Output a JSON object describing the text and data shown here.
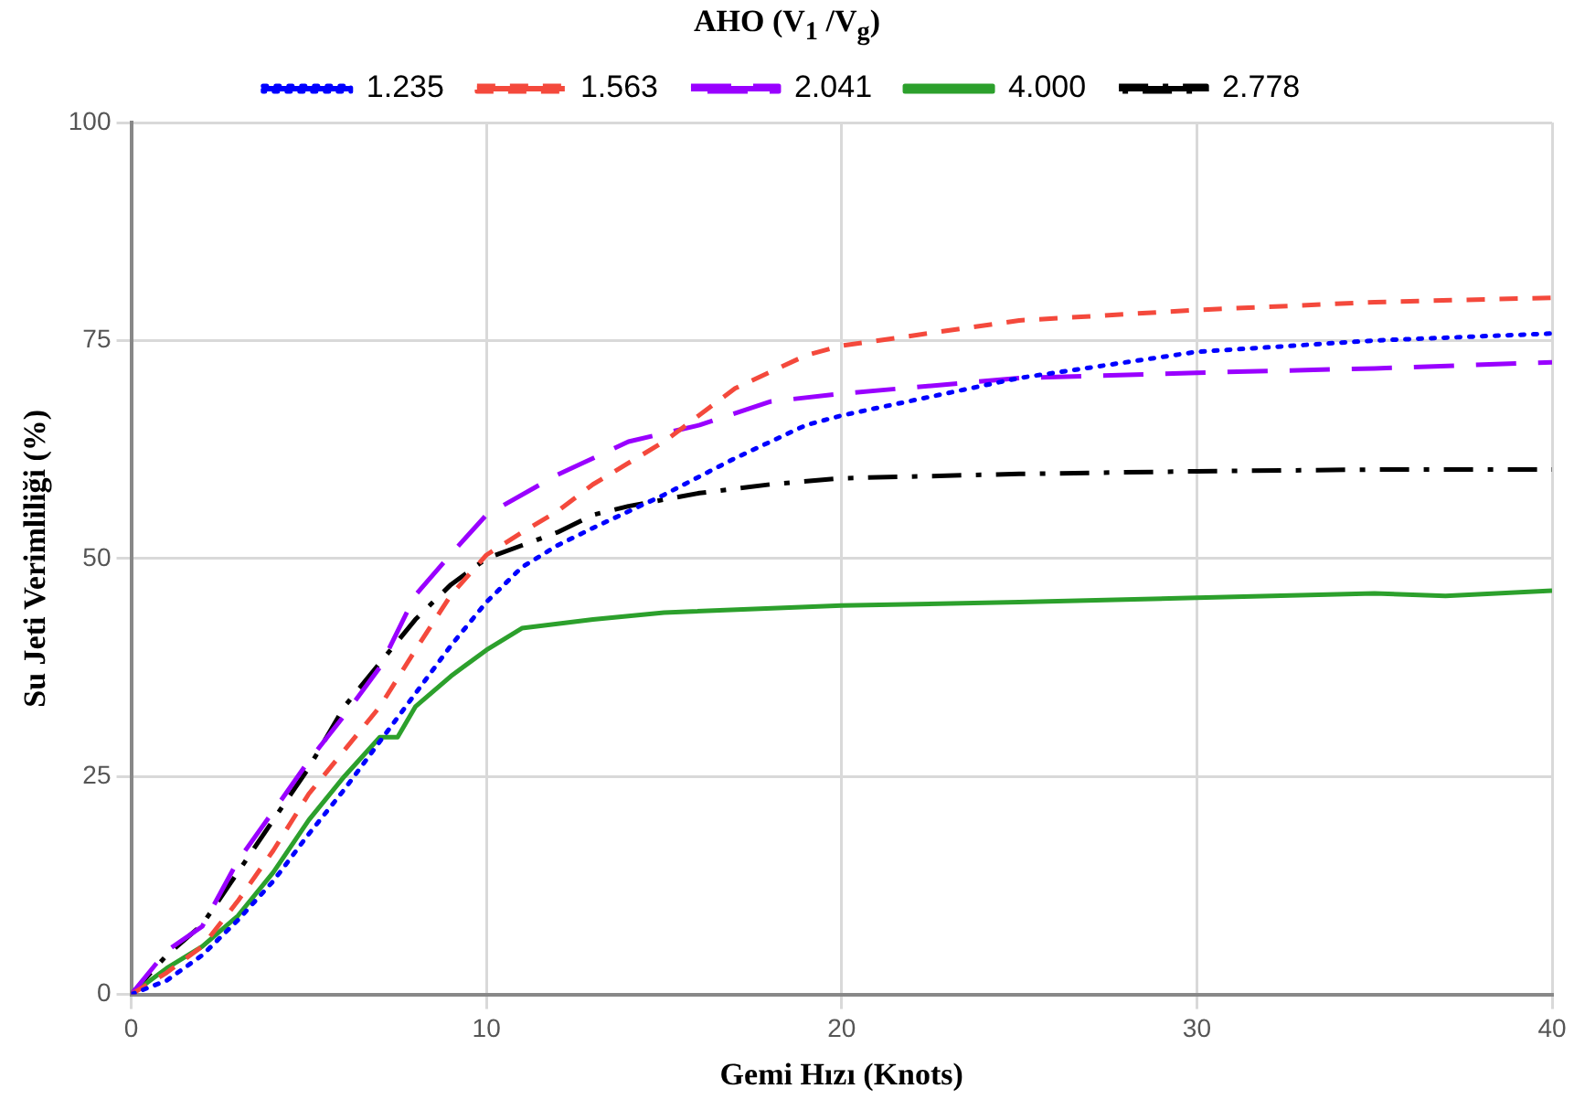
{
  "chart_data": {
    "type": "line",
    "legend_title": "AHO (V$_{1}$ /V$_{g}$)",
    "xlabel": "Gemi Hızı (Knots)",
    "ylabel": "Su Jeti Verimliliği (%)",
    "xlim": [
      0,
      40
    ],
    "xticks": [
      0,
      10,
      20,
      30,
      40
    ],
    "ylim": [
      0,
      100
    ],
    "yticks": [
      0,
      25,
      50,
      75,
      100
    ],
    "grid": true,
    "legend": "top",
    "marker": "none",
    "series": [
      {
        "name": "1.235",
        "color": "#0000ff",
        "line_style": "dotted",
        "x": [
          0,
          1,
          2,
          3,
          4,
          5,
          6,
          7,
          8,
          9,
          10,
          11,
          12,
          13,
          15,
          17,
          19,
          20,
          25,
          30,
          35,
          40
        ],
        "values": [
          0,
          1.6,
          4.5,
          8.5,
          13,
          18.4,
          23.5,
          29,
          34.5,
          40,
          45,
          49,
          51.5,
          53.5,
          57.3,
          61.5,
          65.3,
          66.4,
          70.7,
          73.7,
          75,
          75.8
        ]
      },
      {
        "name": "1.563",
        "color": "#f4493c",
        "line_style": "dashed",
        "x": [
          0,
          1,
          2,
          3,
          4,
          5,
          6,
          7,
          8,
          9,
          10,
          11,
          12,
          13,
          15,
          17,
          19,
          20,
          25,
          30,
          35,
          40
        ],
        "values": [
          0,
          2.5,
          5.5,
          10.7,
          16.5,
          23,
          28,
          33,
          39.5,
          45.8,
          50.4,
          53,
          55.4,
          58.5,
          63.4,
          69.5,
          73.3,
          74.4,
          77.3,
          78.5,
          79.4,
          79.9
        ]
      },
      {
        "name": "2.041",
        "color": "#9900ff",
        "line_style": "longdash",
        "x": [
          0,
          1,
          2,
          3,
          4,
          5,
          6,
          7,
          8,
          9,
          10,
          12,
          14,
          16,
          18,
          20,
          25,
          30,
          35,
          40
        ],
        "values": [
          0,
          5,
          7.8,
          15.3,
          21,
          26.8,
          32,
          37.5,
          45.8,
          50.5,
          55,
          59.6,
          63.4,
          65.3,
          68,
          68.9,
          70.7,
          71.3,
          71.8,
          72.5
        ]
      },
      {
        "name": "4.000",
        "color": "#2ca02c",
        "line_style": "solid",
        "x": [
          0,
          1,
          2,
          3,
          4,
          5,
          6,
          7,
          7.5,
          8,
          9,
          10,
          11,
          12,
          13,
          15,
          20,
          25,
          30,
          35,
          37,
          40
        ],
        "values": [
          0,
          3,
          5.5,
          9,
          14,
          20,
          25,
          29.5,
          29.5,
          33,
          36.5,
          39.5,
          42,
          42.5,
          43,
          43.8,
          44.6,
          45,
          45.5,
          46,
          45.7,
          46.3
        ]
      },
      {
        "name": "2.778",
        "color": "#000000",
        "line_style": "dashdot",
        "x": [
          0,
          1,
          2,
          3,
          4,
          5,
          6,
          7,
          8,
          9,
          10,
          11,
          12,
          13,
          14,
          16,
          18,
          20,
          25,
          30,
          35,
          40
        ],
        "values": [
          0,
          4.5,
          8,
          14,
          20,
          26,
          33,
          38,
          43,
          47,
          50,
          51.5,
          53,
          55,
          56,
          57.5,
          58.5,
          59.2,
          59.7,
          60,
          60.2,
          60.2
        ]
      }
    ]
  }
}
